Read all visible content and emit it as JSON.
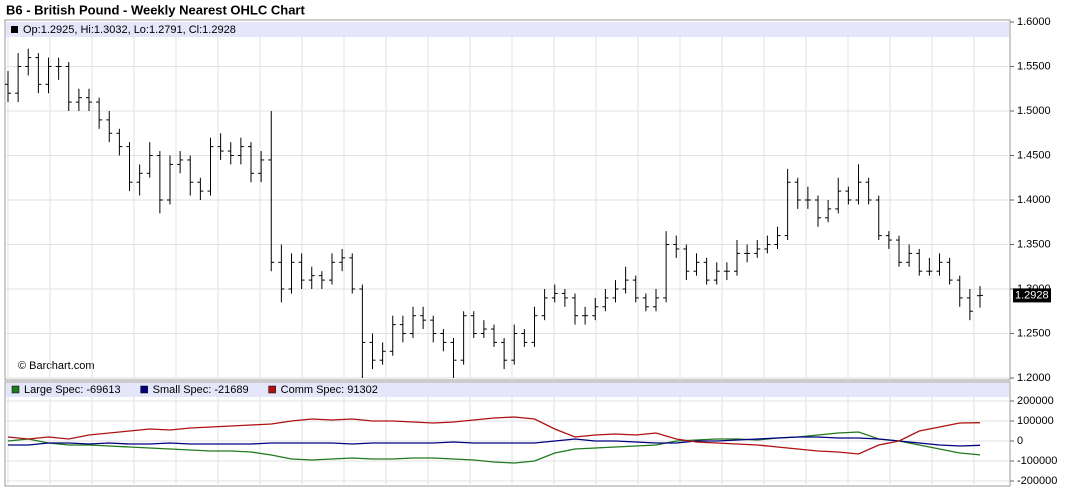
{
  "chart_data": [
    {
      "type": "ohlc",
      "title": "B6 - British Pound - Weekly Nearest OHLC Chart",
      "info": "Op:1.2925, Hi:1.3032, Lo:1.2791, Cl:1.2928",
      "watermark": "© Barchart.com",
      "color": "#000000",
      "last_label": "1.2928",
      "open": [
        1.53,
        1.52,
        1.55,
        1.56,
        1.53,
        1.55,
        1.55,
        1.51,
        1.515,
        1.51,
        1.49,
        1.475,
        1.46,
        1.42,
        1.43,
        1.45,
        1.4,
        1.44,
        1.445,
        1.42,
        1.41,
        1.46,
        1.455,
        1.45,
        1.46,
        1.43,
        1.445,
        1.33,
        1.3,
        1.33,
        1.31,
        1.315,
        1.31,
        1.33,
        1.335,
        1.3,
        1.24,
        1.22,
        1.23,
        1.26,
        1.25,
        1.27,
        1.265,
        1.25,
        1.24,
        1.22,
        1.27,
        1.25,
        1.255,
        1.24,
        1.22,
        1.25,
        1.24,
        1.27,
        1.29,
        1.295,
        1.29,
        1.27,
        1.27,
        1.28,
        1.29,
        1.3,
        1.31,
        1.29,
        1.28,
        1.29,
        1.35,
        1.345,
        1.32,
        1.33,
        1.31,
        1.32,
        1.32,
        1.34,
        1.34,
        1.345,
        1.35,
        1.36,
        1.42,
        1.4,
        1.4,
        1.38,
        1.39,
        1.41,
        1.4,
        1.42,
        1.4,
        1.36,
        1.355,
        1.33,
        1.34,
        1.32,
        1.32,
        1.33,
        1.31,
        1.29,
        1.2925
      ],
      "high": [
        1.545,
        1.565,
        1.57,
        1.565,
        1.56,
        1.56,
        1.555,
        1.525,
        1.525,
        1.515,
        1.5,
        1.48,
        1.465,
        1.44,
        1.465,
        1.455,
        1.45,
        1.455,
        1.45,
        1.425,
        1.47,
        1.475,
        1.465,
        1.47,
        1.465,
        1.455,
        1.5,
        1.35,
        1.34,
        1.34,
        1.325,
        1.32,
        1.34,
        1.345,
        1.34,
        1.305,
        1.25,
        1.24,
        1.27,
        1.27,
        1.28,
        1.28,
        1.27,
        1.255,
        1.245,
        1.275,
        1.275,
        1.265,
        1.26,
        1.245,
        1.26,
        1.255,
        1.28,
        1.3,
        1.305,
        1.3,
        1.295,
        1.28,
        1.29,
        1.3,
        1.31,
        1.325,
        1.315,
        1.295,
        1.3,
        1.365,
        1.36,
        1.35,
        1.34,
        1.335,
        1.33,
        1.33,
        1.355,
        1.35,
        1.355,
        1.36,
        1.37,
        1.435,
        1.425,
        1.415,
        1.405,
        1.4,
        1.425,
        1.415,
        1.44,
        1.425,
        1.405,
        1.365,
        1.36,
        1.35,
        1.345,
        1.335,
        1.34,
        1.335,
        1.315,
        1.3,
        1.3032
      ],
      "low": [
        1.51,
        1.51,
        1.54,
        1.52,
        1.52,
        1.535,
        1.5,
        1.5,
        1.5,
        1.48,
        1.465,
        1.45,
        1.41,
        1.405,
        1.425,
        1.385,
        1.395,
        1.43,
        1.405,
        1.4,
        1.405,
        1.445,
        1.44,
        1.44,
        1.42,
        1.42,
        1.32,
        1.285,
        1.295,
        1.3,
        1.3,
        1.3,
        1.305,
        1.32,
        1.295,
        1.2,
        1.21,
        1.215,
        1.225,
        1.24,
        1.245,
        1.255,
        1.24,
        1.23,
        1.2,
        1.215,
        1.245,
        1.245,
        1.235,
        1.21,
        1.215,
        1.235,
        1.235,
        1.265,
        1.285,
        1.28,
        1.26,
        1.26,
        1.265,
        1.275,
        1.285,
        1.295,
        1.285,
        1.275,
        1.275,
        1.285,
        1.335,
        1.31,
        1.315,
        1.305,
        1.305,
        1.31,
        1.315,
        1.33,
        1.335,
        1.34,
        1.345,
        1.355,
        1.39,
        1.39,
        1.37,
        1.375,
        1.385,
        1.395,
        1.395,
        1.395,
        1.355,
        1.345,
        1.325,
        1.325,
        1.315,
        1.315,
        1.315,
        1.305,
        1.28,
        1.265,
        1.2791
      ],
      "close": [
        1.52,
        1.55,
        1.56,
        1.53,
        1.55,
        1.55,
        1.51,
        1.515,
        1.51,
        1.49,
        1.475,
        1.46,
        1.42,
        1.43,
        1.45,
        1.4,
        1.44,
        1.445,
        1.42,
        1.41,
        1.46,
        1.455,
        1.45,
        1.46,
        1.43,
        1.445,
        1.33,
        1.3,
        1.33,
        1.31,
        1.315,
        1.31,
        1.33,
        1.335,
        1.3,
        1.24,
        1.22,
        1.23,
        1.26,
        1.25,
        1.27,
        1.265,
        1.25,
        1.24,
        1.22,
        1.27,
        1.25,
        1.255,
        1.24,
        1.22,
        1.25,
        1.24,
        1.27,
        1.29,
        1.295,
        1.29,
        1.27,
        1.27,
        1.28,
        1.29,
        1.3,
        1.31,
        1.29,
        1.28,
        1.29,
        1.35,
        1.345,
        1.32,
        1.33,
        1.31,
        1.32,
        1.32,
        1.34,
        1.34,
        1.345,
        1.35,
        1.36,
        1.42,
        1.4,
        1.4,
        1.38,
        1.39,
        1.41,
        1.4,
        1.42,
        1.4,
        1.36,
        1.355,
        1.33,
        1.34,
        1.32,
        1.32,
        1.33,
        1.31,
        1.29,
        1.275,
        1.2928
      ],
      "ylim": [
        1.2,
        1.6
      ],
      "yticks": [
        {
          "value": 1.2,
          "label": "1.2000"
        },
        {
          "value": 1.25,
          "label": "1.2500"
        },
        {
          "value": 1.3,
          "label": "1.3000"
        },
        {
          "value": 1.35,
          "label": "1.3500"
        },
        {
          "value": 1.4,
          "label": "1.4000"
        },
        {
          "value": 1.45,
          "label": "1.4500"
        },
        {
          "value": 1.5,
          "label": "1.5000"
        },
        {
          "value": 1.55,
          "label": "1.5500"
        },
        {
          "value": 1.6,
          "label": "1.6000"
        }
      ],
      "grid": true
    },
    {
      "type": "line",
      "series": [
        {
          "name": "Large Spec: -69613",
          "color": "#1e7a1e",
          "values": [
            0,
            10000,
            -10000,
            -20000,
            -20000,
            -25000,
            -30000,
            -35000,
            -40000,
            -45000,
            -50000,
            -50000,
            -55000,
            -70000,
            -90000,
            -95000,
            -90000,
            -85000,
            -90000,
            -90000,
            -85000,
            -85000,
            -90000,
            -95000,
            -105000,
            -110000,
            -100000,
            -60000,
            -40000,
            -35000,
            -30000,
            -25000,
            -20000,
            0,
            5000,
            10000,
            10000,
            5000,
            15000,
            20000,
            30000,
            40000,
            45000,
            10000,
            0,
            -20000,
            -40000,
            -60000,
            -69613
          ]
        },
        {
          "name": "Small Spec: -21689",
          "color": "#000080",
          "values": [
            -20000,
            -20000,
            -10000,
            -10000,
            -15000,
            -10000,
            -15000,
            -15000,
            -10000,
            -15000,
            -15000,
            -15000,
            -15000,
            -10000,
            -10000,
            -10000,
            -10000,
            -15000,
            -10000,
            -10000,
            -10000,
            -10000,
            -5000,
            -10000,
            -10000,
            -10000,
            -10000,
            0,
            10000,
            0,
            0,
            -5000,
            -10000,
            -10000,
            0,
            0,
            5000,
            10000,
            15000,
            20000,
            20000,
            15000,
            15000,
            10000,
            0,
            -10000,
            -20000,
            -25000,
            -21689
          ]
        },
        {
          "name": "Comm Spec: 91302",
          "color": "#b01010",
          "values": [
            20000,
            10000,
            20000,
            10000,
            30000,
            40000,
            50000,
            60000,
            55000,
            65000,
            70000,
            75000,
            80000,
            85000,
            100000,
            110000,
            105000,
            110000,
            100000,
            100000,
            95000,
            90000,
            95000,
            105000,
            115000,
            120000,
            110000,
            60000,
            20000,
            30000,
            35000,
            30000,
            40000,
            10000,
            -5000,
            -10000,
            -15000,
            -20000,
            -30000,
            -40000,
            -50000,
            -55000,
            -65000,
            -20000,
            0,
            50000,
            70000,
            90000,
            91302
          ]
        }
      ],
      "ylim": [
        -200000,
        200000
      ],
      "yticks": [
        200000,
        100000,
        0,
        -100000,
        -200000
      ],
      "grid": true
    }
  ]
}
